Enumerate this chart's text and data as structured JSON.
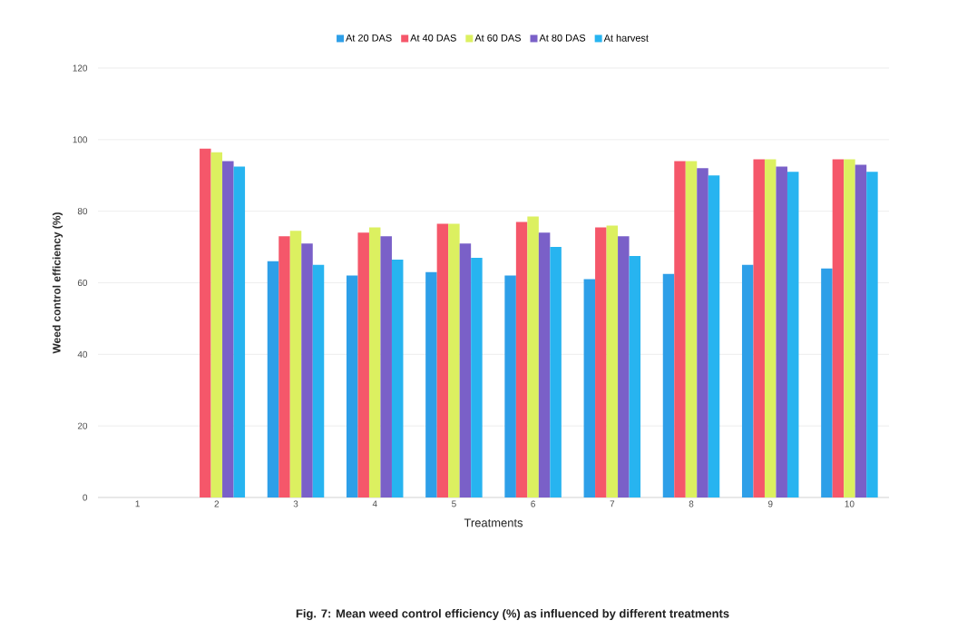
{
  "chart_data": {
    "type": "bar",
    "title": "Fig. 7: Mean weed control efficiency (%) as influenced by different treatments",
    "xlabel": "Treatments",
    "ylabel": "Weed control efficiency (%)",
    "categories": [
      "1",
      "2",
      "3",
      "4",
      "5",
      "6",
      "7",
      "8",
      "9",
      "10"
    ],
    "series": [
      {
        "name": "At 20 DAS",
        "color": "#2e9fe8",
        "values": [
          0,
          0,
          66,
          62,
          63,
          62,
          61,
          62.5,
          65,
          64
        ]
      },
      {
        "name": "At 40 DAS",
        "color": "#f5576a",
        "values": [
          0,
          97.5,
          73,
          74,
          76.5,
          77,
          75.5,
          94,
          94.5,
          94.5
        ]
      },
      {
        "name": "At 60 DAS",
        "color": "#dcf060",
        "values": [
          0,
          96.5,
          74.5,
          75.5,
          76.5,
          78.5,
          76,
          94,
          94.5,
          94.5
        ]
      },
      {
        "name": "At 80 DAS",
        "color": "#7a60c8",
        "values": [
          0,
          94,
          71,
          73,
          71,
          74,
          73,
          92,
          92.5,
          93
        ]
      },
      {
        "name": "At harvest",
        "color": "#27b4f0",
        "values": [
          0,
          92.5,
          65,
          66.5,
          67,
          70,
          67.5,
          90,
          91,
          91
        ]
      }
    ],
    "ylim": [
      0,
      120
    ],
    "yticks": [
      0,
      20,
      40,
      60,
      80,
      100,
      120
    ],
    "grid": "y",
    "legend": "top"
  }
}
